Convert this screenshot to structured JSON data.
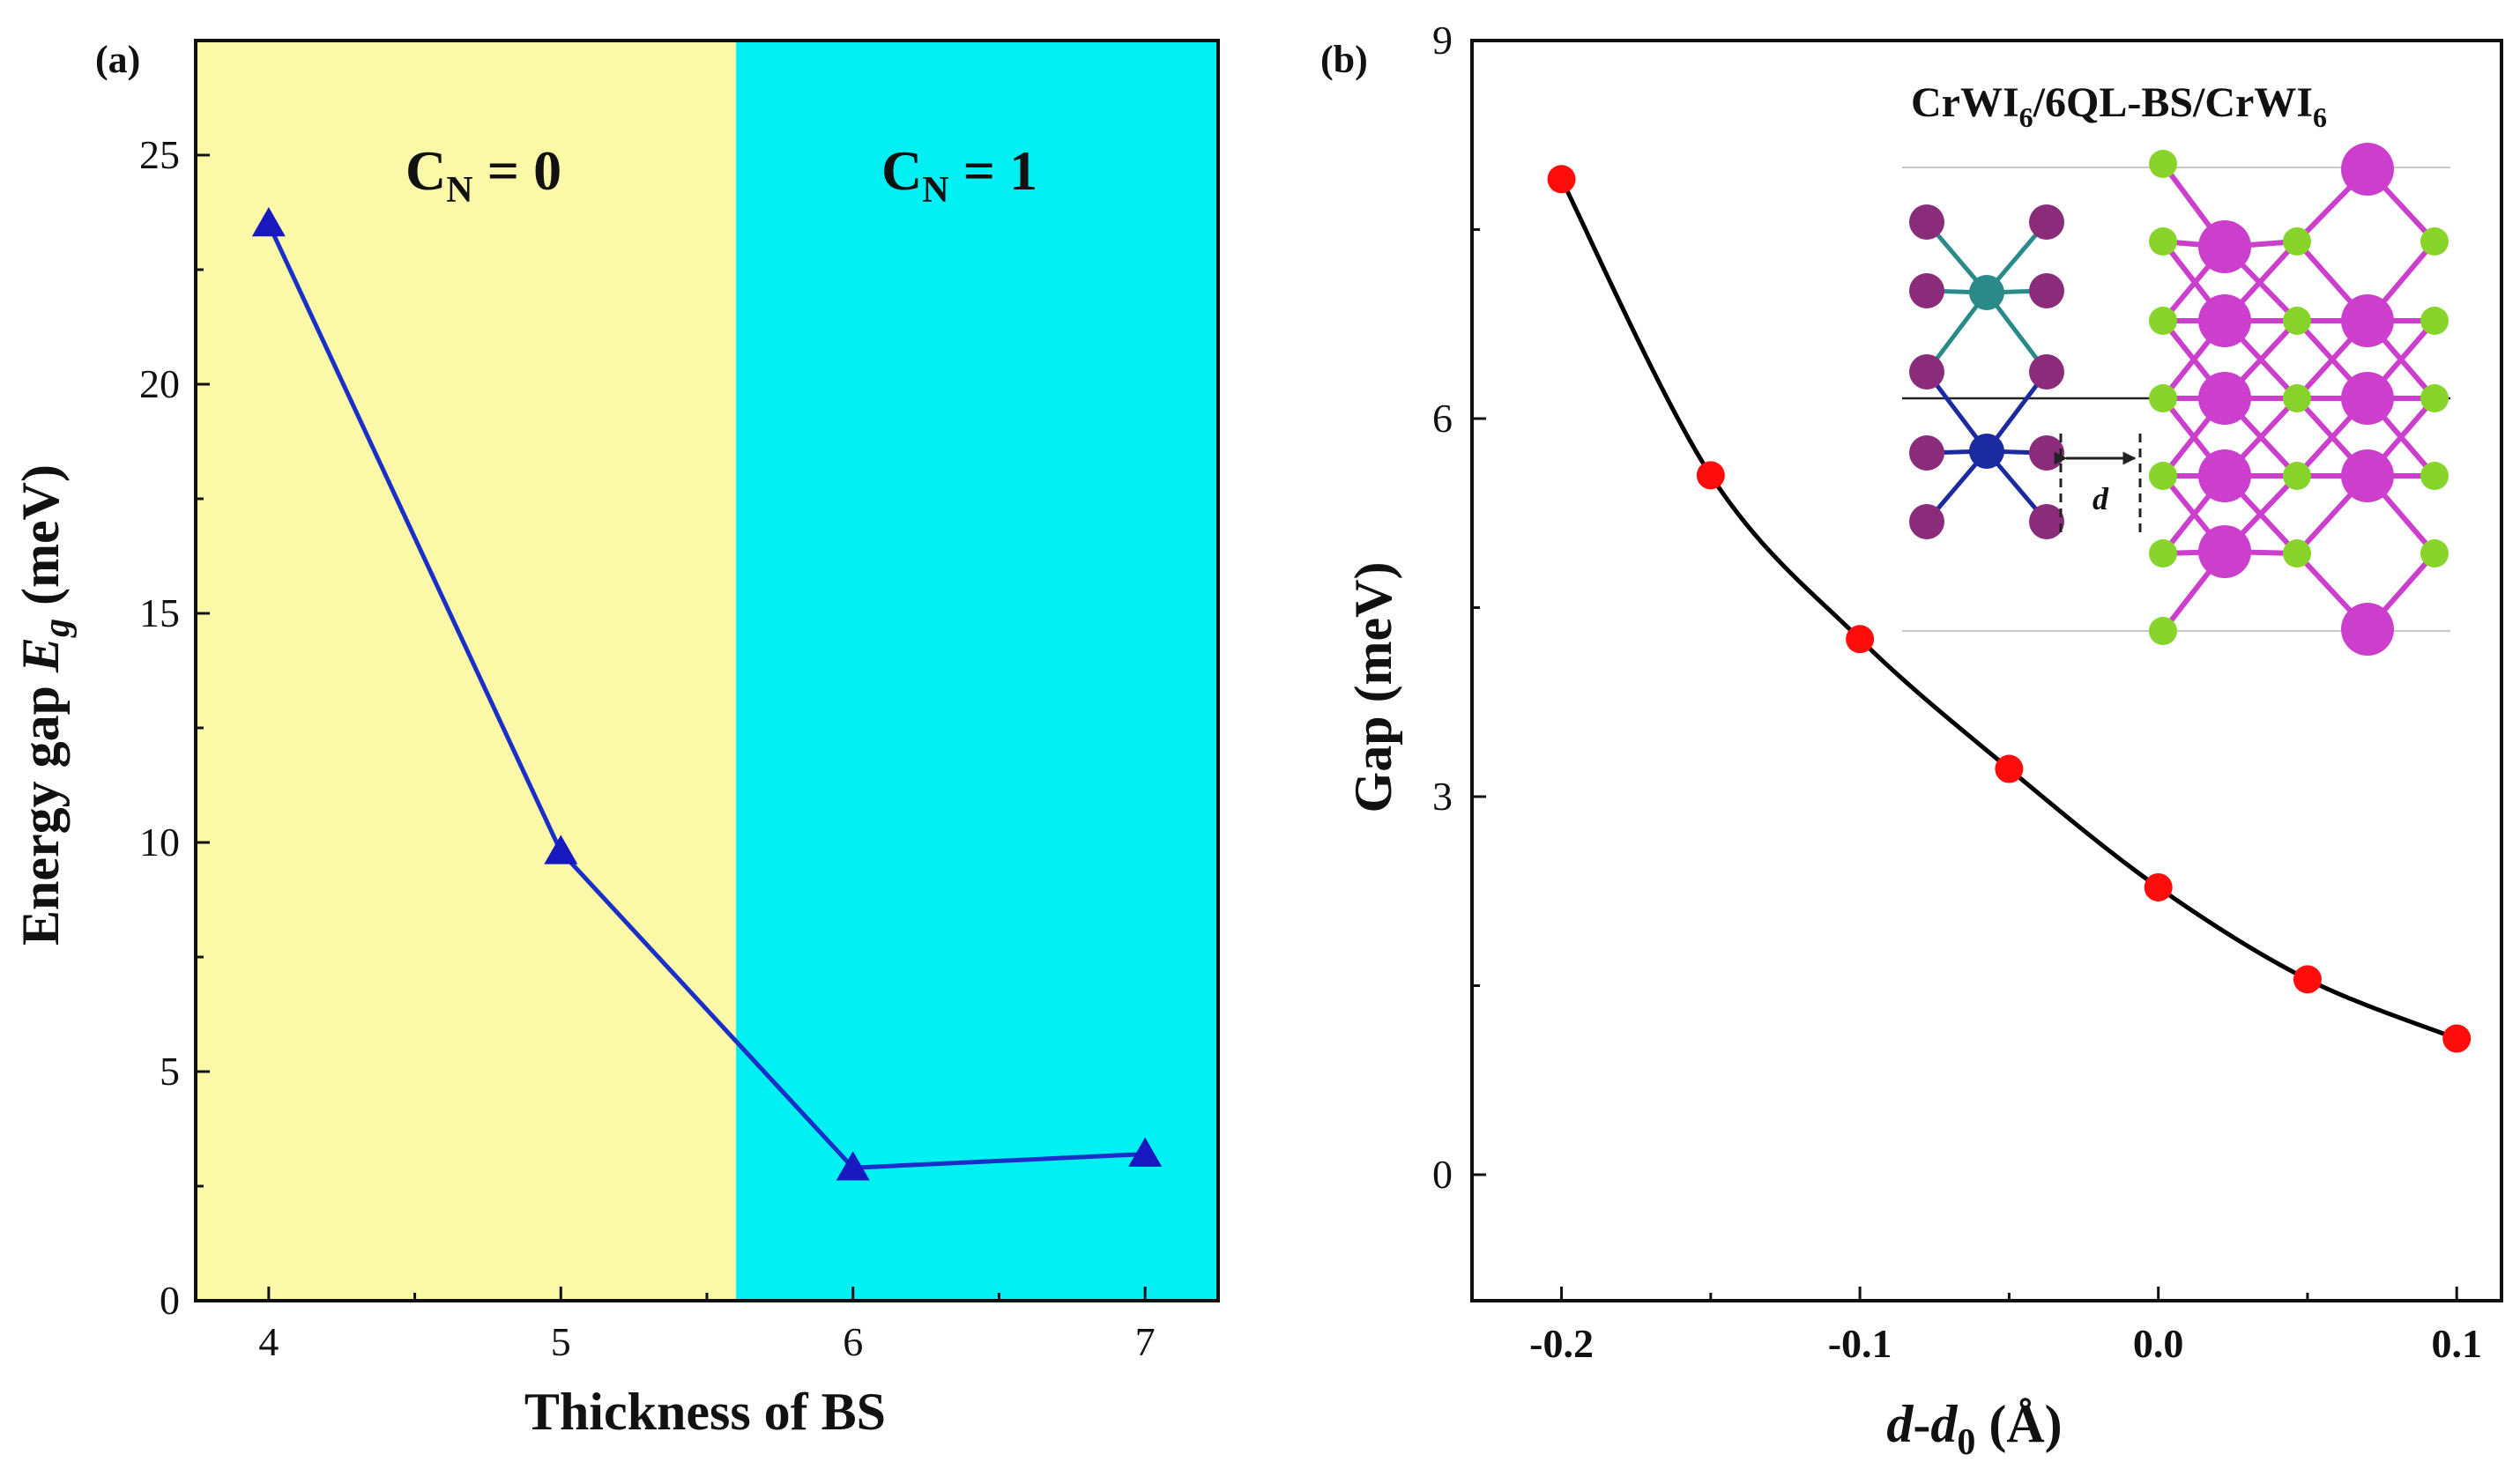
{
  "colors": {
    "region0": "#fbf9a8",
    "region1": "#00f0f4",
    "lineA": "#1a2fc8",
    "markerA": "#1818c0",
    "lineB": "#000000",
    "markerB": "#ff0d0d",
    "inset_bi": "#cc3fcc",
    "inset_se": "#88d42a",
    "inset_i": "#8a2c7a",
    "inset_cr": "#2a8a8a",
    "inset_w": "#1c2aa0"
  },
  "chart_data": [
    {
      "type": "line",
      "panel_label": "(a)",
      "title": "",
      "xlabel": "Thickness of BS",
      "ylabel": "Energy gap E_g (meV)",
      "ylabel_parts": {
        "main": "Energy gap ",
        "symbol": "E",
        "sub": "g",
        "unit": " (meV)"
      },
      "xlim": [
        3.75,
        7.25
      ],
      "ylim": [
        0,
        27.5
      ],
      "xticks": [
        4,
        5,
        6,
        7
      ],
      "xtick_labels": [
        "4",
        "5",
        "6",
        "7"
      ],
      "yticks": [
        0,
        5,
        10,
        15,
        20,
        25
      ],
      "ytick_labels": [
        "0",
        "5",
        "10",
        "15",
        "20",
        "25"
      ],
      "marker": "triangle",
      "x": [
        4,
        5,
        6,
        7
      ],
      "values": [
        23.5,
        9.8,
        2.9,
        3.2
      ],
      "regions": [
        {
          "label_main": "C",
          "label_sub": "N",
          "label_rest": " = 0",
          "from": 3.75,
          "to": 5.6
        },
        {
          "label_main": "C",
          "label_sub": "N",
          "label_rest": " = 1",
          "from": 5.6,
          "to": 7.25
        }
      ]
    },
    {
      "type": "line",
      "panel_label": "(b)",
      "title": "",
      "xlabel": "d-d0 (Å)",
      "xlabel_parts": {
        "var1": "d",
        "dash": "-",
        "var2": "d",
        "sub": "0",
        "unit": " (Å)"
      },
      "ylabel": "Gap (meV)",
      "xlim": [
        -0.23,
        0.115
      ],
      "ylim": [
        -1,
        9
      ],
      "xticks": [
        -0.2,
        -0.15,
        -0.1,
        -0.05,
        0.0,
        0.05,
        0.1
      ],
      "xtick_labels": [
        "-0.2",
        "",
        "-0.1",
        "",
        "0.0",
        "",
        "0.1"
      ],
      "yticks": [
        0,
        3,
        6,
        9
      ],
      "ytick_labels": [
        "0",
        "3",
        "6",
        "9"
      ],
      "marker": "circle",
      "x": [
        -0.2,
        -0.15,
        -0.1,
        -0.05,
        0.0,
        0.05,
        0.1
      ],
      "values": [
        7.9,
        5.55,
        4.25,
        3.22,
        2.28,
        1.55,
        1.08
      ],
      "inset": {
        "title_parts": [
          "CrWI",
          "6",
          "/6QL-BS/CrWI",
          "6"
        ],
        "distance_label": "d"
      }
    }
  ]
}
